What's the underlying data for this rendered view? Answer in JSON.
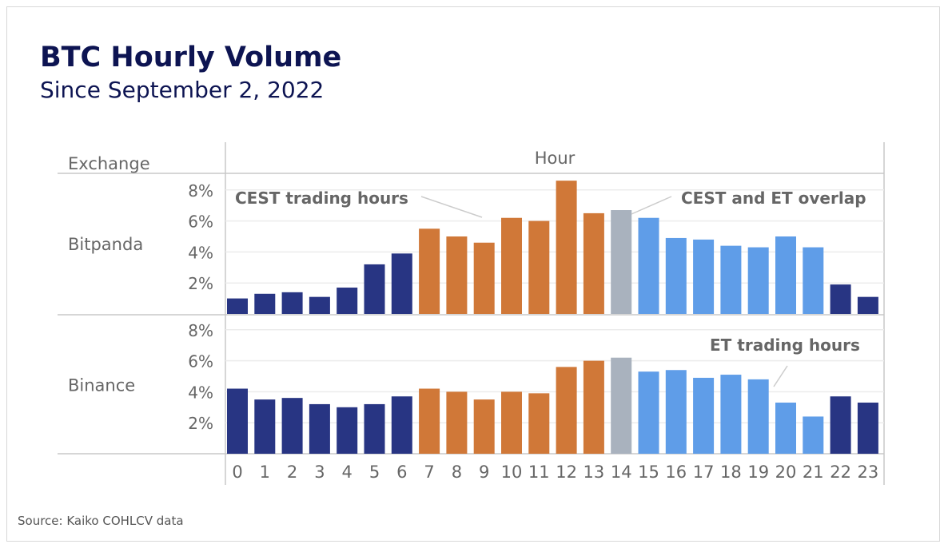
{
  "title": "BTC Hourly Volume",
  "subtitle": "Since September 2, 2022",
  "source": "Source: Kaiko COHLCV data",
  "colors": {
    "off_hours": "#283583",
    "cest": "#D07838",
    "overlap": "#A9B2BE",
    "et": "#5F9DE8"
  },
  "chart_data": {
    "type": "bar",
    "row_header": "Exchange",
    "column_header": "Hour",
    "categories": [
      "0",
      "1",
      "2",
      "3",
      "4",
      "5",
      "6",
      "7",
      "8",
      "9",
      "10",
      "11",
      "12",
      "13",
      "14",
      "15",
      "16",
      "17",
      "18",
      "19",
      "20",
      "21",
      "22",
      "23"
    ],
    "hour_group": [
      "off",
      "off",
      "off",
      "off",
      "off",
      "off",
      "off",
      "cest",
      "cest",
      "cest",
      "cest",
      "cest",
      "cest",
      "cest",
      "overlap",
      "et",
      "et",
      "et",
      "et",
      "et",
      "et",
      "et",
      "off",
      "off"
    ],
    "yticks": [
      "2%",
      "4%",
      "6%",
      "8%"
    ],
    "ylim": [
      0,
      9
    ],
    "grid": true,
    "series": [
      {
        "name": "Bitpanda",
        "values": [
          1.0,
          1.3,
          1.4,
          1.1,
          1.7,
          3.2,
          3.9,
          5.5,
          5.0,
          4.6,
          6.2,
          6.0,
          8.6,
          6.5,
          6.7,
          6.2,
          4.9,
          4.8,
          4.4,
          4.3,
          5.0,
          4.3,
          1.9,
          1.1
        ]
      },
      {
        "name": "Binance",
        "values": [
          4.2,
          3.5,
          3.6,
          3.2,
          3.0,
          3.2,
          3.7,
          4.2,
          4.0,
          3.5,
          4.0,
          3.9,
          5.6,
          6.0,
          6.2,
          5.3,
          5.4,
          4.9,
          5.1,
          4.8,
          3.3,
          2.4,
          3.7,
          3.3
        ]
      }
    ],
    "annotations": [
      "CEST trading hours",
      "CEST and ET overlap",
      "ET trading hours"
    ]
  }
}
